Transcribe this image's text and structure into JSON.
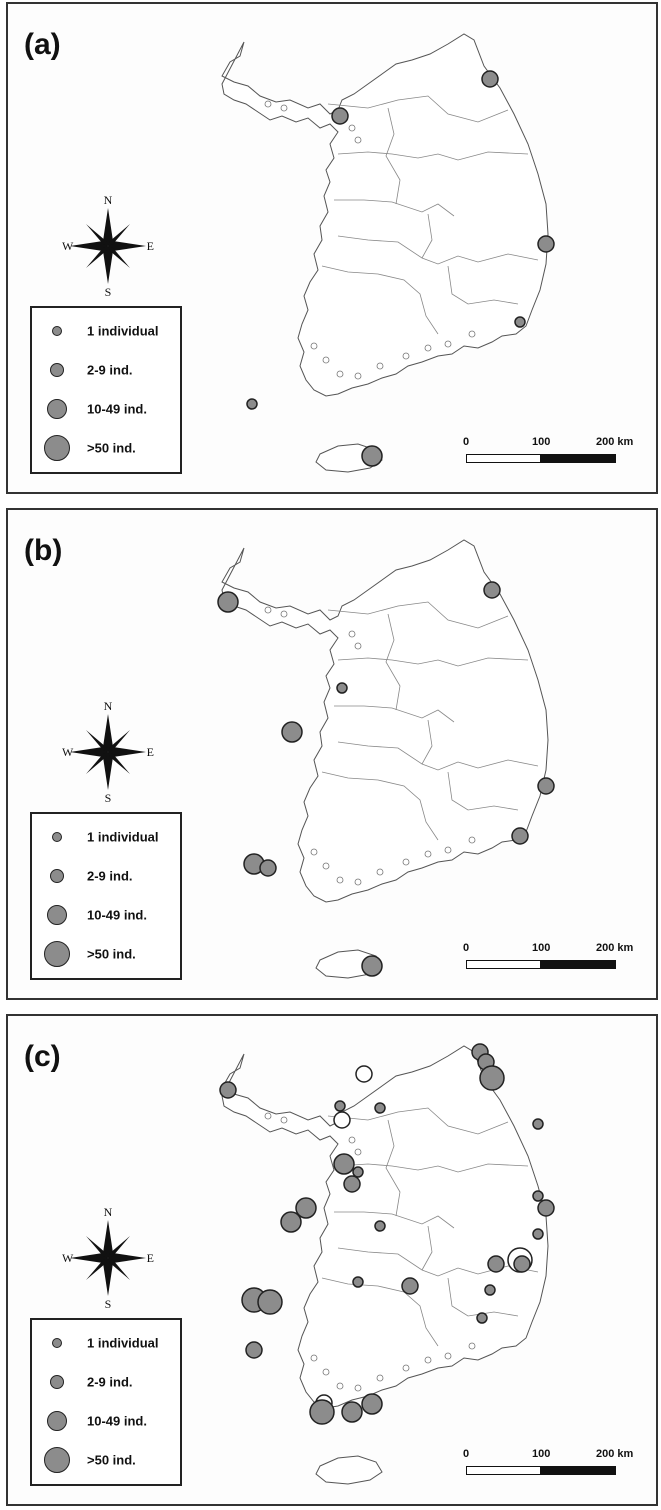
{
  "colors": {
    "site_fill": "#8c8c8c",
    "open_site_fill": "#ffffff",
    "outline": "#222222",
    "coast": "#555555"
  },
  "compass": {
    "n": "N",
    "s": "S",
    "e": "E",
    "w": "W"
  },
  "legend": [
    {
      "label": "1 individual",
      "size_class": 1
    },
    {
      "label": "2-9 ind.",
      "size_class": 2
    },
    {
      "label": "10-49 ind.",
      "size_class": 3
    },
    {
      "label": ">50 ind.",
      "size_class": 4
    }
  ],
  "scale_bar": {
    "labels": [
      "0",
      "100",
      "200 km"
    ]
  },
  "panels": [
    {
      "label": "(a)",
      "sites": [
        {
          "region": "Gangwon east coast",
          "size_class": 2,
          "fill": "grey"
        },
        {
          "region": "Gyeonggi / Incheon coast",
          "size_class": 2,
          "fill": "grey"
        },
        {
          "region": "Gyeongbuk east coast",
          "size_class": 2,
          "fill": "grey"
        },
        {
          "region": "Ulsan / Busan coast",
          "size_class": 1,
          "fill": "grey"
        },
        {
          "region": "Southwest offshore islands",
          "size_class": 1,
          "fill": "grey"
        },
        {
          "region": "Jeju Island",
          "size_class": 3,
          "fill": "grey"
        }
      ]
    },
    {
      "label": "(b)",
      "sites": [
        {
          "region": "Ganghwa / northwest islands",
          "size_class": 2,
          "fill": "grey"
        },
        {
          "region": "Gangwon east coast",
          "size_class": 3,
          "fill": "grey"
        },
        {
          "region": "Chungnam west coast",
          "size_class": 1,
          "fill": "grey"
        },
        {
          "region": "West Sea offshore",
          "size_class": 3,
          "fill": "grey"
        },
        {
          "region": "Gyeongbuk east coast",
          "size_class": 2,
          "fill": "grey"
        },
        {
          "region": "Busan coast",
          "size_class": 2,
          "fill": "grey"
        },
        {
          "region": "Southwest offshore islands",
          "size_class": 3,
          "fill": "grey"
        },
        {
          "region": "Southwest offshore islands",
          "size_class": 2,
          "fill": "grey"
        },
        {
          "region": "Jeju Island",
          "size_class": 3,
          "fill": "grey"
        }
      ]
    },
    {
      "label": "(c)",
      "sites": [
        {
          "region": "Gangwon north coast",
          "size_class": 2,
          "fill": "grey"
        },
        {
          "region": "Gangwon north coast",
          "size_class": 2,
          "fill": "grey"
        },
        {
          "region": "Gangwon north coast",
          "size_class": 4,
          "fill": "grey"
        },
        {
          "region": "Ganghwa / northwest islands",
          "size_class": 2,
          "fill": "grey"
        },
        {
          "region": "Gyeonggi north",
          "size_class": 2,
          "fill": "white"
        },
        {
          "region": "Gyeonggi / Incheon",
          "size_class": 1,
          "fill": "grey"
        },
        {
          "region": "Gyeonggi / Incheon",
          "size_class": 2,
          "fill": "white"
        },
        {
          "region": "Gyeonggi south",
          "size_class": 1,
          "fill": "grey"
        },
        {
          "region": "Chungnam west coast",
          "size_class": 3,
          "fill": "grey"
        },
        {
          "region": "Chungnam west coast",
          "size_class": 1,
          "fill": "grey"
        },
        {
          "region": "Chungnam west coast",
          "size_class": 2,
          "fill": "grey"
        },
        {
          "region": "West Sea offshore",
          "size_class": 3,
          "fill": "grey"
        },
        {
          "region": "West Sea offshore",
          "size_class": 3,
          "fill": "grey"
        },
        {
          "region": "Jeonbuk inland",
          "size_class": 1,
          "fill": "grey"
        },
        {
          "region": "Gyeongbuk east coast",
          "size_class": 1,
          "fill": "grey"
        },
        {
          "region": "Gyeongbuk east coast",
          "size_class": 1,
          "fill": "grey"
        },
        {
          "region": "Gyeongbuk east coast",
          "size_class": 2,
          "fill": "grey"
        },
        {
          "region": "Ulsan coast",
          "size_class": 1,
          "fill": "grey"
        },
        {
          "region": "Busan",
          "size_class": 4,
          "fill": "white"
        },
        {
          "region": "Busan",
          "size_class": 2,
          "fill": "grey"
        },
        {
          "region": "Gyeongnam coast",
          "size_class": 2,
          "fill": "grey"
        },
        {
          "region": "Gyeongnam south coast",
          "size_class": 1,
          "fill": "grey"
        },
        {
          "region": "Gyeongnam south coast",
          "size_class": 1,
          "fill": "grey"
        },
        {
          "region": "Jeonnam south coast",
          "size_class": 2,
          "fill": "grey"
        },
        {
          "region": "Jeonnam inland",
          "size_class": 1,
          "fill": "grey"
        },
        {
          "region": "Southwest offshore islands",
          "size_class": 4,
          "fill": "grey"
        },
        {
          "region": "Southwest offshore islands",
          "size_class": 4,
          "fill": "grey"
        },
        {
          "region": "Southwest offshore islands",
          "size_class": 2,
          "fill": "grey"
        },
        {
          "region": "Jeju Island",
          "size_class": 2,
          "fill": "white"
        },
        {
          "region": "Jeju Island",
          "size_class": 3,
          "fill": "grey"
        },
        {
          "region": "Jeju Island",
          "size_class": 3,
          "fill": "grey"
        },
        {
          "region": "Jeju Island",
          "size_class": 4,
          "fill": "grey"
        }
      ]
    }
  ]
}
